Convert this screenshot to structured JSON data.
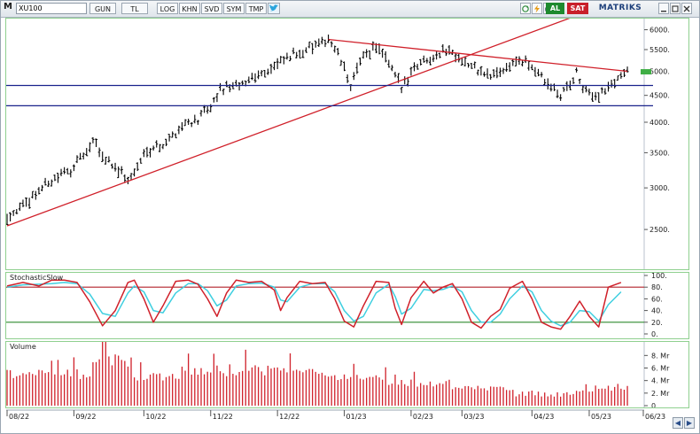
{
  "toolbar": {
    "menu_label": "M",
    "symbol": "XU100",
    "buttons": [
      "GUN",
      "TL",
      "LOG",
      "KHN",
      "SVD",
      "SYM",
      "TMP"
    ],
    "al_label": "AL",
    "sat_label": "SAT",
    "brand": "MATRIKS",
    "icons": [
      "twitter-icon",
      "refresh-icon",
      "lightning-icon",
      "print-icon",
      "minimize-icon",
      "maximize-icon",
      "close-icon"
    ],
    "colors": {
      "al": "#1e8a2e",
      "sat": "#c8202a",
      "brand": "#1d3f7a"
    }
  },
  "stoch_panel": {
    "title": "StochasticSlow"
  },
  "volume_panel": {
    "title": "Volume"
  },
  "chart_data": [
    {
      "type": "ohlc",
      "name": "price",
      "scale": "log",
      "ylim": [
        2100,
        6300
      ],
      "yticks": [
        "6000.",
        "5500.",
        "5000.",
        "4500.",
        "4000.",
        "3500.",
        "3000.",
        "2500."
      ],
      "ytick_values": [
        6000,
        5500,
        5000,
        4500,
        4000,
        3500,
        3000,
        2500
      ],
      "x_range": [
        0,
        200
      ],
      "anchors": [
        [
          0,
          2650
        ],
        [
          6,
          2800
        ],
        [
          12,
          3050
        ],
        [
          20,
          3250
        ],
        [
          26,
          3550
        ],
        [
          27,
          3700
        ],
        [
          30,
          3450
        ],
        [
          34,
          3300
        ],
        [
          38,
          3100
        ],
        [
          40,
          3200
        ],
        [
          44,
          3550
        ],
        [
          50,
          3650
        ],
        [
          55,
          3950
        ],
        [
          60,
          4050
        ],
        [
          64,
          4250
        ],
        [
          67,
          4600
        ],
        [
          70,
          4700
        ],
        [
          73,
          4650
        ],
        [
          77,
          4900
        ],
        [
          82,
          5000
        ],
        [
          86,
          5200
        ],
        [
          92,
          5450
        ],
        [
          98,
          5600
        ],
        [
          101,
          5750
        ],
        [
          104,
          5400
        ],
        [
          108,
          4700
        ],
        [
          112,
          5350
        ],
        [
          116,
          5600
        ],
        [
          120,
          5150
        ],
        [
          124,
          4650
        ],
        [
          128,
          5100
        ],
        [
          132,
          5300
        ],
        [
          136,
          5400
        ],
        [
          139,
          5500
        ],
        [
          144,
          5200
        ],
        [
          148,
          5000
        ],
        [
          152,
          4900
        ],
        [
          156,
          5050
        ],
        [
          160,
          5250
        ],
        [
          165,
          5100
        ],
        [
          170,
          4700
        ],
        [
          174,
          4500
        ],
        [
          177,
          4750
        ],
        [
          179,
          4950
        ],
        [
          182,
          4550
        ],
        [
          186,
          4500
        ],
        [
          190,
          4700
        ],
        [
          193,
          4950
        ],
        [
          195,
          5000
        ]
      ],
      "lines": [
        {
          "name": "uptrend",
          "color": "#d0202a",
          "from": [
            0,
            2540
          ],
          "to": [
            178,
            6350
          ]
        },
        {
          "name": "downtrend",
          "color": "#d0202a",
          "from": [
            101,
            5750
          ],
          "to": [
            195,
            5000
          ]
        },
        {
          "name": "support-upper",
          "color": "#1a238c",
          "y": 4700
        },
        {
          "name": "support-lower",
          "color": "#1a238c",
          "y": 4300
        }
      ],
      "last_value_marker": {
        "y": 4990,
        "color": "#3fae45"
      }
    },
    {
      "type": "line",
      "name": "stochastic-slow",
      "ylim": [
        0,
        100
      ],
      "yticks": [
        "100.",
        "80.",
        "60.",
        "40.",
        "20.",
        "0."
      ],
      "ytick_values": [
        100,
        80,
        60,
        40,
        20,
        0
      ],
      "levels": [
        {
          "y": 80,
          "color": "#b3202a"
        },
        {
          "y": 20,
          "color": "#2f8a2f"
        }
      ],
      "series": [
        {
          "color": "#d0202a",
          "points": [
            [
              0,
              82
            ],
            [
              5,
              88
            ],
            [
              10,
              82
            ],
            [
              14,
              92
            ],
            [
              18,
              92
            ],
            [
              22,
              88
            ],
            [
              26,
              55
            ],
            [
              30,
              14
            ],
            [
              34,
              40
            ],
            [
              38,
              88
            ],
            [
              40,
              92
            ],
            [
              43,
              60
            ],
            [
              46,
              20
            ],
            [
              49,
              48
            ],
            [
              53,
              90
            ],
            [
              57,
              92
            ],
            [
              60,
              85
            ],
            [
              63,
              60
            ],
            [
              66,
              30
            ],
            [
              69,
              70
            ],
            [
              72,
              92
            ],
            [
              76,
              88
            ],
            [
              80,
              90
            ],
            [
              84,
              75
            ],
            [
              86,
              40
            ],
            [
              88,
              62
            ],
            [
              92,
              90
            ],
            [
              96,
              86
            ],
            [
              100,
              88
            ],
            [
              103,
              60
            ],
            [
              106,
              22
            ],
            [
              109,
              12
            ],
            [
              112,
              48
            ],
            [
              116,
              90
            ],
            [
              120,
              88
            ],
            [
              122,
              44
            ],
            [
              124,
              16
            ],
            [
              127,
              62
            ],
            [
              131,
              90
            ],
            [
              134,
              70
            ],
            [
              137,
              80
            ],
            [
              140,
              86
            ],
            [
              143,
              60
            ],
            [
              146,
              20
            ],
            [
              149,
              10
            ],
            [
              152,
              30
            ],
            [
              155,
              42
            ],
            [
              158,
              78
            ],
            [
              162,
              90
            ],
            [
              165,
              60
            ],
            [
              168,
              20
            ],
            [
              171,
              12
            ],
            [
              174,
              8
            ],
            [
              177,
              30
            ],
            [
              180,
              56
            ],
            [
              183,
              30
            ],
            [
              186,
              12
            ],
            [
              189,
              80
            ],
            [
              193,
              88
            ]
          ]
        },
        {
          "color": "#3fcfe0",
          "points": [
            [
              0,
              80
            ],
            [
              5,
              84
            ],
            [
              10,
              85
            ],
            [
              14,
              86
            ],
            [
              18,
              88
            ],
            [
              22,
              86
            ],
            [
              26,
              68
            ],
            [
              30,
              35
            ],
            [
              34,
              30
            ],
            [
              38,
              70
            ],
            [
              40,
              82
            ],
            [
              43,
              72
            ],
            [
              46,
              40
            ],
            [
              49,
              36
            ],
            [
              53,
              70
            ],
            [
              57,
              86
            ],
            [
              60,
              86
            ],
            [
              63,
              74
            ],
            [
              66,
              48
            ],
            [
              69,
              58
            ],
            [
              72,
              82
            ],
            [
              76,
              86
            ],
            [
              80,
              87
            ],
            [
              84,
              80
            ],
            [
              86,
              58
            ],
            [
              88,
              55
            ],
            [
              92,
              80
            ],
            [
              96,
              86
            ],
            [
              100,
              86
            ],
            [
              103,
              72
            ],
            [
              106,
              40
            ],
            [
              109,
              22
            ],
            [
              112,
              30
            ],
            [
              116,
              70
            ],
            [
              120,
              85
            ],
            [
              122,
              64
            ],
            [
              124,
              34
            ],
            [
              127,
              44
            ],
            [
              131,
              76
            ],
            [
              134,
              74
            ],
            [
              137,
              76
            ],
            [
              140,
              82
            ],
            [
              143,
              72
            ],
            [
              146,
              40
            ],
            [
              149,
              20
            ],
            [
              152,
              20
            ],
            [
              155,
              34
            ],
            [
              158,
              60
            ],
            [
              162,
              82
            ],
            [
              165,
              72
            ],
            [
              168,
              40
            ],
            [
              171,
              22
            ],
            [
              174,
              14
            ],
            [
              177,
              20
            ],
            [
              180,
              40
            ],
            [
              183,
              38
            ],
            [
              186,
              22
            ],
            [
              189,
              50
            ],
            [
              193,
              72
            ]
          ]
        }
      ]
    },
    {
      "type": "bar",
      "name": "volume",
      "ylim": [
        0,
        9.6
      ],
      "yticks": [
        "8. Mr",
        "6. Mr",
        "4. Mr",
        "2. Mr",
        "0."
      ],
      "ytick_values": [
        8,
        6,
        4,
        2,
        0
      ],
      "bar_color": "#d0202a",
      "segments": [
        [
          0,
          27,
          4.2,
          5.8
        ],
        [
          27,
          40,
          6.0,
          8.2
        ],
        [
          40,
          55,
          4.0,
          5.2
        ],
        [
          55,
          70,
          4.5,
          6.5
        ],
        [
          70,
          90,
          4.8,
          6.8
        ],
        [
          90,
          100,
          5.0,
          6.0
        ],
        [
          100,
          120,
          3.8,
          5.0
        ],
        [
          120,
          140,
          3.0,
          4.2
        ],
        [
          140,
          160,
          2.4,
          3.2
        ],
        [
          160,
          180,
          1.4,
          2.4
        ],
        [
          180,
          196,
          2.2,
          3.6
        ]
      ]
    }
  ],
  "time_axis": {
    "labels": [
      "08/22",
      "09/22",
      "10/22",
      "11/22",
      "12/22",
      "01/23",
      "02/23",
      "03/23",
      "04/23",
      "05/23",
      "06/23"
    ],
    "positions": [
      0,
      21,
      43,
      64,
      85,
      106,
      127,
      143,
      165,
      183,
      200
    ]
  }
}
